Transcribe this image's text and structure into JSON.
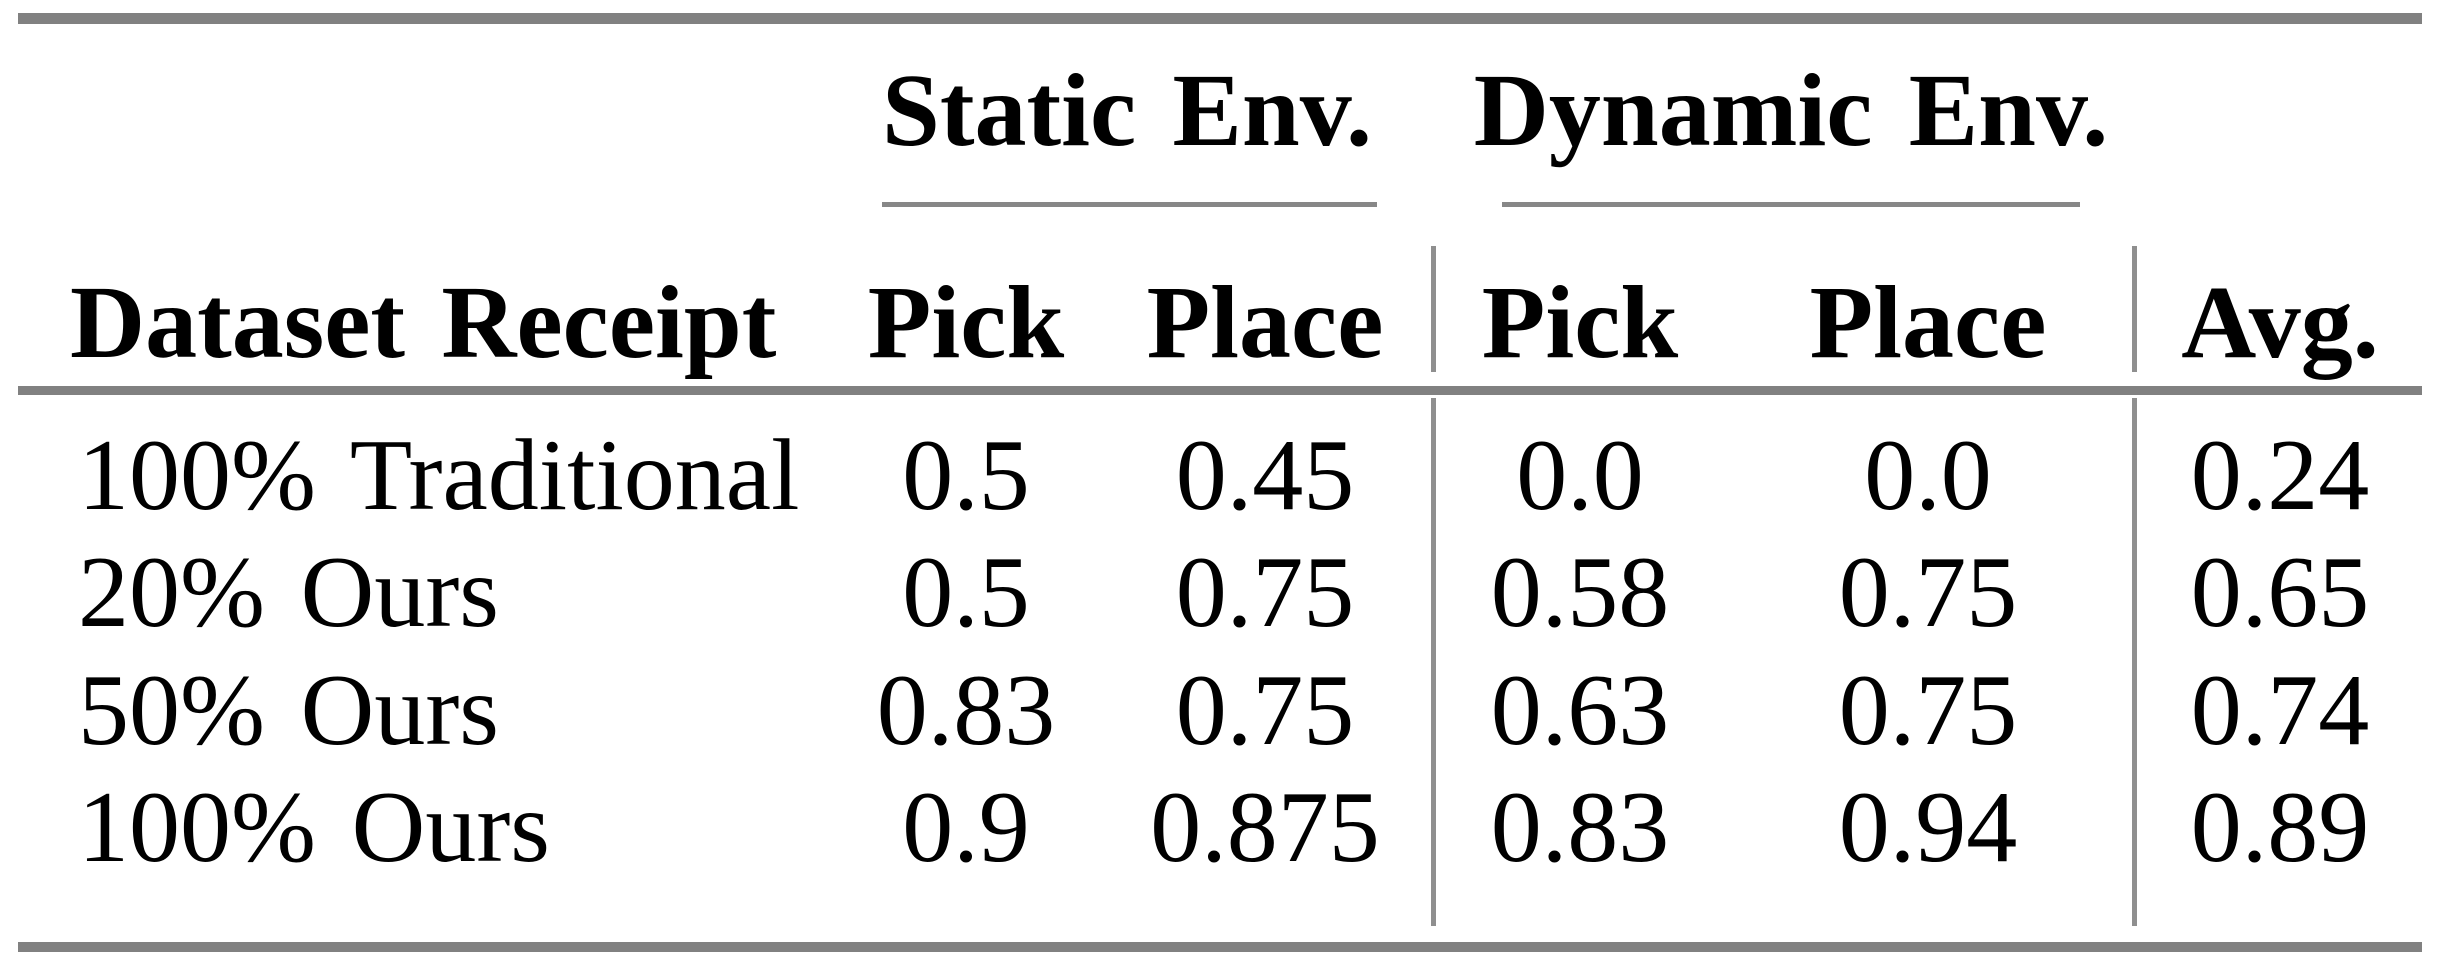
{
  "table": {
    "group_headers": [
      {
        "label": "Static Env."
      },
      {
        "label": "Dynamic Env."
      }
    ],
    "columns": {
      "row_header": "Dataset Receipt",
      "static_pick": "Pick",
      "static_place": "Place",
      "dynamic_pick": "Pick",
      "dynamic_place": "Place",
      "avg": "Avg."
    },
    "rows": [
      {
        "label": "100% Traditional",
        "cells": [
          "0.5",
          "0.45",
          "0.0",
          "0.0",
          "0.24"
        ]
      },
      {
        "label": "20% Ours",
        "cells": [
          "0.5",
          "0.75",
          "0.58",
          "0.75",
          "0.65"
        ]
      },
      {
        "label": "50% Ours",
        "cells": [
          "0.83",
          "0.75",
          "0.63",
          "0.75",
          "0.74"
        ]
      },
      {
        "label": "100% Ours",
        "cells": [
          "0.9",
          "0.875",
          "0.83",
          "0.94",
          "0.89"
        ]
      }
    ],
    "colors": {
      "rule_gray": "#818181",
      "divider_gray": "#8f8f8f",
      "text": "#000000",
      "background": "#ffffff"
    }
  },
  "chart_data": {
    "type": "table",
    "columns": [
      "Dataset Receipt",
      "Static Env. Pick",
      "Static Env. Place",
      "Dynamic Env. Pick",
      "Dynamic Env. Place",
      "Avg."
    ],
    "rows": [
      [
        "100% Traditional",
        0.5,
        0.45,
        0.0,
        0.0,
        0.24
      ],
      [
        "20% Ours",
        0.5,
        0.75,
        0.58,
        0.75,
        0.65
      ],
      [
        "50% Ours",
        0.83,
        0.75,
        0.63,
        0.75,
        0.74
      ],
      [
        "100% Ours",
        0.9,
        0.875,
        0.83,
        0.94,
        0.89
      ]
    ]
  }
}
